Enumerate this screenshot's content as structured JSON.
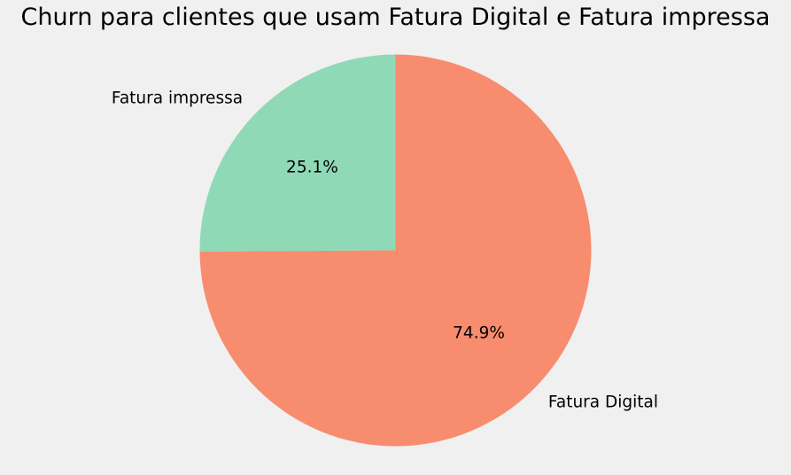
{
  "chart_data": {
    "type": "pie",
    "title": "Churn para clientes que usam Fatura Digital e Fatura impressa",
    "slices": [
      {
        "label": "Fatura impressa",
        "value": 25.1,
        "pct_label": "25.1%",
        "color": "#8fd9b6"
      },
      {
        "label": "Fatura Digital",
        "value": 74.9,
        "pct_label": "74.9%",
        "color": "#f88c6f"
      }
    ],
    "start_angle_deg": 90,
    "direction": "counterclockwise"
  }
}
